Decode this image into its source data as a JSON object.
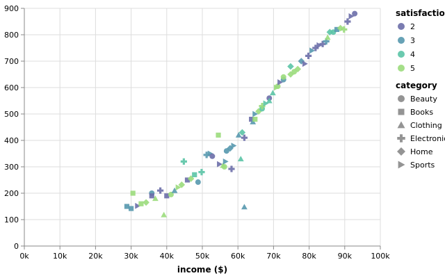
{
  "chart_data": {
    "type": "scatter",
    "title": "",
    "xlabel": "income ($)",
    "ylabel": "",
    "xlim": [
      0,
      100000
    ],
    "ylim": [
      0,
      900
    ],
    "x_ticks": [
      {
        "value": 0,
        "label": "0k"
      },
      {
        "value": 10000,
        "label": "10k"
      },
      {
        "value": 20000,
        "label": "20k"
      },
      {
        "value": 30000,
        "label": "30k"
      },
      {
        "value": 40000,
        "label": "40k"
      },
      {
        "value": 50000,
        "label": "50k"
      },
      {
        "value": 60000,
        "label": "60k"
      },
      {
        "value": 70000,
        "label": "70k"
      },
      {
        "value": 80000,
        "label": "80k"
      },
      {
        "value": 90000,
        "label": "90k"
      },
      {
        "value": 100000,
        "label": "100k"
      }
    ],
    "y_ticks": [
      {
        "value": 0,
        "label": "0"
      },
      {
        "value": 100,
        "label": "100"
      },
      {
        "value": 200,
        "label": "200"
      },
      {
        "value": 300,
        "label": "300"
      },
      {
        "value": 400,
        "label": "400"
      },
      {
        "value": 500,
        "label": "500"
      },
      {
        "value": 600,
        "label": "600"
      },
      {
        "value": 700,
        "label": "700"
      },
      {
        "value": 800,
        "label": "800"
      },
      {
        "value": 900,
        "label": "900"
      }
    ],
    "grid": true,
    "legend_placement": "right",
    "color_legend": {
      "title": "satisfaction",
      "entries": [
        {
          "label": "2",
          "value": 2,
          "color": "#6b6ea8"
        },
        {
          "label": "3",
          "value": 3,
          "color": "#5698ae"
        },
        {
          "label": "4",
          "value": 4,
          "color": "#5bc4a6"
        },
        {
          "label": "5",
          "value": 5,
          "color": "#9bdb7c"
        }
      ]
    },
    "shape_legend": {
      "title": "category",
      "entries": [
        {
          "label": "Beauty",
          "shape": "circle"
        },
        {
          "label": "Books",
          "shape": "square"
        },
        {
          "label": "Clothing",
          "shape": "triangle-up"
        },
        {
          "label": "Electronics",
          "shape": "cross"
        },
        {
          "label": "Home",
          "shape": "diamond"
        },
        {
          "label": "Sports",
          "shape": "triangle-right"
        }
      ]
    },
    "points": [
      {
        "x": 28800,
        "y": 150,
        "category": "Books",
        "satisfaction": 3
      },
      {
        "x": 30000,
        "y": 142,
        "category": "Books",
        "satisfaction": 3
      },
      {
        "x": 30500,
        "y": 200,
        "category": "Books",
        "satisfaction": 5
      },
      {
        "x": 31800,
        "y": 152,
        "category": "Sports",
        "satisfaction": 2
      },
      {
        "x": 32800,
        "y": 160,
        "category": "Books",
        "satisfaction": 5
      },
      {
        "x": 34200,
        "y": 165,
        "category": "Home",
        "satisfaction": 5
      },
      {
        "x": 35800,
        "y": 200,
        "category": "Beauty",
        "satisfaction": 3
      },
      {
        "x": 35800,
        "y": 190,
        "category": "Books",
        "satisfaction": 2
      },
      {
        "x": 36800,
        "y": 180,
        "category": "Clothing",
        "satisfaction": 5
      },
      {
        "x": 38200,
        "y": 210,
        "category": "Electronics",
        "satisfaction": 2
      },
      {
        "x": 39200,
        "y": 118,
        "category": "Clothing",
        "satisfaction": 5
      },
      {
        "x": 40000,
        "y": 190,
        "category": "Books",
        "satisfaction": 2
      },
      {
        "x": 41200,
        "y": 195,
        "category": "Beauty",
        "satisfaction": 5
      },
      {
        "x": 42200,
        "y": 210,
        "category": "Clothing",
        "satisfaction": 3
      },
      {
        "x": 43200,
        "y": 222,
        "category": "Sports",
        "satisfaction": 5
      },
      {
        "x": 44200,
        "y": 232,
        "category": "Home",
        "satisfaction": 5
      },
      {
        "x": 44800,
        "y": 320,
        "category": "Electronics",
        "satisfaction": 4
      },
      {
        "x": 45800,
        "y": 250,
        "category": "Books",
        "satisfaction": 2
      },
      {
        "x": 46800,
        "y": 255,
        "category": "Home",
        "satisfaction": 5
      },
      {
        "x": 47800,
        "y": 270,
        "category": "Books",
        "satisfaction": 4
      },
      {
        "x": 48800,
        "y": 242,
        "category": "Beauty",
        "satisfaction": 3
      },
      {
        "x": 49800,
        "y": 280,
        "category": "Electronics",
        "satisfaction": 4
      },
      {
        "x": 51200,
        "y": 345,
        "category": "Electronics",
        "satisfaction": 3
      },
      {
        "x": 52200,
        "y": 350,
        "category": "Sports",
        "satisfaction": 3
      },
      {
        "x": 52800,
        "y": 340,
        "category": "Beauty",
        "satisfaction": 2
      },
      {
        "x": 54500,
        "y": 420,
        "category": "Books",
        "satisfaction": 5
      },
      {
        "x": 54800,
        "y": 310,
        "category": "Sports",
        "satisfaction": 2
      },
      {
        "x": 55800,
        "y": 305,
        "category": "Clothing",
        "satisfaction": 5
      },
      {
        "x": 56200,
        "y": 300,
        "category": "Beauty",
        "satisfaction": 5
      },
      {
        "x": 56500,
        "y": 320,
        "category": "Sports",
        "satisfaction": 3
      },
      {
        "x": 56800,
        "y": 360,
        "category": "Beauty",
        "satisfaction": 3
      },
      {
        "x": 57800,
        "y": 370,
        "category": "Home",
        "satisfaction": 3
      },
      {
        "x": 58200,
        "y": 292,
        "category": "Electronics",
        "satisfaction": 2
      },
      {
        "x": 58800,
        "y": 380,
        "category": "Sports",
        "satisfaction": 3
      },
      {
        "x": 60200,
        "y": 420,
        "category": "Clothing",
        "satisfaction": 3
      },
      {
        "x": 60800,
        "y": 330,
        "category": "Clothing",
        "satisfaction": 4
      },
      {
        "x": 61200,
        "y": 430,
        "category": "Home",
        "satisfaction": 4
      },
      {
        "x": 61800,
        "y": 148,
        "category": "Clothing",
        "satisfaction": 3
      },
      {
        "x": 61800,
        "y": 410,
        "category": "Electronics",
        "satisfaction": 2
      },
      {
        "x": 63800,
        "y": 480,
        "category": "Books",
        "satisfaction": 2
      },
      {
        "x": 64200,
        "y": 470,
        "category": "Clothing",
        "satisfaction": 3
      },
      {
        "x": 64800,
        "y": 480,
        "category": "Books",
        "satisfaction": 5
      },
      {
        "x": 64800,
        "y": 500,
        "category": "Sports",
        "satisfaction": 3
      },
      {
        "x": 65800,
        "y": 510,
        "category": "Home",
        "satisfaction": 5
      },
      {
        "x": 66800,
        "y": 520,
        "category": "Beauty",
        "satisfaction": 4
      },
      {
        "x": 66800,
        "y": 530,
        "category": "Electronics",
        "satisfaction": 5
      },
      {
        "x": 67800,
        "y": 540,
        "category": "Sports",
        "satisfaction": 4
      },
      {
        "x": 68800,
        "y": 560,
        "category": "Beauty",
        "satisfaction": 2
      },
      {
        "x": 68800,
        "y": 550,
        "category": "Clothing",
        "satisfaction": 4
      },
      {
        "x": 69800,
        "y": 580,
        "category": "Clothing",
        "satisfaction": 4
      },
      {
        "x": 70800,
        "y": 600,
        "category": "Sports",
        "satisfaction": 5
      },
      {
        "x": 71200,
        "y": 605,
        "category": "Beauty",
        "satisfaction": 5
      },
      {
        "x": 71800,
        "y": 620,
        "category": "Sports",
        "satisfaction": 2
      },
      {
        "x": 72800,
        "y": 630,
        "category": "Beauty",
        "satisfaction": 3
      },
      {
        "x": 72800,
        "y": 640,
        "category": "Beauty",
        "satisfaction": 5
      },
      {
        "x": 74800,
        "y": 680,
        "category": "Home",
        "satisfaction": 4
      },
      {
        "x": 74800,
        "y": 650,
        "category": "Home",
        "satisfaction": 5
      },
      {
        "x": 75800,
        "y": 660,
        "category": "Beauty",
        "satisfaction": 5
      },
      {
        "x": 76800,
        "y": 670,
        "category": "Home",
        "satisfaction": 5
      },
      {
        "x": 77800,
        "y": 700,
        "category": "Home",
        "satisfaction": 3
      },
      {
        "x": 78800,
        "y": 690,
        "category": "Sports",
        "satisfaction": 2
      },
      {
        "x": 79800,
        "y": 720,
        "category": "Electronics",
        "satisfaction": 2
      },
      {
        "x": 80800,
        "y": 740,
        "category": "Sports",
        "satisfaction": 3
      },
      {
        "x": 81800,
        "y": 750,
        "category": "Electronics",
        "satisfaction": 2
      },
      {
        "x": 82800,
        "y": 760,
        "category": "Sports",
        "satisfaction": 2
      },
      {
        "x": 83800,
        "y": 765,
        "category": "Electronics",
        "satisfaction": 2
      },
      {
        "x": 84800,
        "y": 775,
        "category": "Electronics",
        "satisfaction": 3
      },
      {
        "x": 85200,
        "y": 790,
        "category": "Clothing",
        "satisfaction": 5
      },
      {
        "x": 85800,
        "y": 810,
        "category": "Home",
        "satisfaction": 4
      },
      {
        "x": 86800,
        "y": 810,
        "category": "Beauty",
        "satisfaction": 4
      },
      {
        "x": 87800,
        "y": 820,
        "category": "Books",
        "satisfaction": 3
      },
      {
        "x": 88800,
        "y": 825,
        "category": "Home",
        "satisfaction": 5
      },
      {
        "x": 89800,
        "y": 820,
        "category": "Electronics",
        "satisfaction": 5
      },
      {
        "x": 90800,
        "y": 850,
        "category": "Electronics",
        "satisfaction": 2
      },
      {
        "x": 91800,
        "y": 870,
        "category": "Sports",
        "satisfaction": 2
      },
      {
        "x": 92800,
        "y": 880,
        "category": "Beauty",
        "satisfaction": 2
      }
    ]
  }
}
